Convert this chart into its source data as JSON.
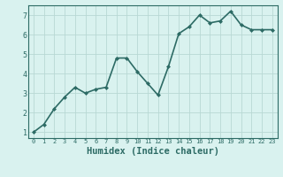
{
  "x": [
    0,
    1,
    2,
    3,
    4,
    5,
    6,
    7,
    8,
    9,
    10,
    11,
    12,
    13,
    14,
    15,
    16,
    17,
    18,
    19,
    20,
    21,
    22,
    23
  ],
  "y": [
    1.0,
    1.4,
    2.2,
    2.8,
    3.3,
    3.0,
    3.2,
    3.3,
    4.8,
    4.8,
    4.1,
    3.5,
    2.9,
    4.35,
    6.05,
    6.4,
    7.0,
    6.6,
    6.7,
    7.2,
    6.5,
    6.25,
    6.25,
    6.25
  ],
  "line_color": "#2d6b65",
  "marker": "D",
  "marker_size": 2.0,
  "bg_color": "#d9f2ef",
  "grid_color": "#b8d8d4",
  "tick_color": "#2d6b65",
  "xlabel": "Humidex (Indice chaleur)",
  "xlabel_fontsize": 7.5,
  "ylim": [
    0.7,
    7.5
  ],
  "xlim": [
    -0.5,
    23.5
  ],
  "yticks": [
    1,
    2,
    3,
    4,
    5,
    6,
    7
  ],
  "xticks": [
    0,
    1,
    2,
    3,
    4,
    5,
    6,
    7,
    8,
    9,
    10,
    11,
    12,
    13,
    14,
    15,
    16,
    17,
    18,
    19,
    20,
    21,
    22,
    23
  ],
  "linewidth": 1.2
}
